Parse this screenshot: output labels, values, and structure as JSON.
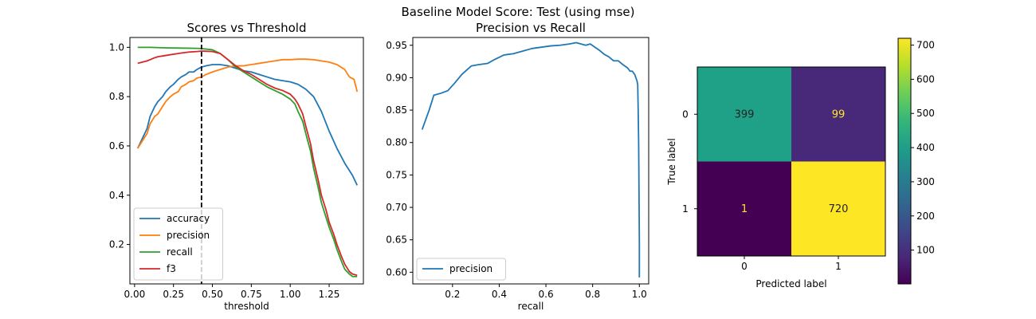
{
  "suptitle": "Baseline Model Score: Test (using mse)",
  "chart_data": [
    {
      "type": "line",
      "title": "Scores vs Threshold",
      "xlabel": "threshold",
      "ylabel": "",
      "xlim": [
        -0.03,
        1.47
      ],
      "ylim": [
        0.04,
        1.04
      ],
      "xticks": [
        0.0,
        0.25,
        0.5,
        0.75,
        1.0,
        1.25
      ],
      "xtick_labels": [
        "0.00",
        "0.25",
        "0.50",
        "0.75",
        "1.00",
        "1.25"
      ],
      "yticks": [
        0.2,
        0.4,
        0.6,
        0.8,
        1.0
      ],
      "ytick_labels": [
        "0.2",
        "0.4",
        "0.6",
        "0.8",
        "1.0"
      ],
      "threshold_line": {
        "x": 0.43,
        "style": "dashed",
        "color": "#000000"
      },
      "legend": {
        "position": "lower-left"
      },
      "series": [
        {
          "name": "accuracy",
          "color": "#1f77b4",
          "x": [
            0.02,
            0.05,
            0.08,
            0.1,
            0.13,
            0.15,
            0.18,
            0.2,
            0.23,
            0.25,
            0.28,
            0.3,
            0.33,
            0.35,
            0.38,
            0.4,
            0.43,
            0.46,
            0.5,
            0.55,
            0.6,
            0.65,
            0.7,
            0.75,
            0.8,
            0.85,
            0.9,
            0.95,
            1.0,
            1.05,
            1.1,
            1.15,
            1.2,
            1.25,
            1.3,
            1.35,
            1.4,
            1.43
          ],
          "y": [
            0.59,
            0.63,
            0.67,
            0.72,
            0.76,
            0.78,
            0.8,
            0.82,
            0.84,
            0.85,
            0.87,
            0.88,
            0.89,
            0.9,
            0.9,
            0.91,
            0.92,
            0.925,
            0.93,
            0.93,
            0.925,
            0.915,
            0.905,
            0.9,
            0.89,
            0.88,
            0.87,
            0.865,
            0.86,
            0.85,
            0.83,
            0.8,
            0.74,
            0.66,
            0.59,
            0.53,
            0.48,
            0.44
          ]
        },
        {
          "name": "precision",
          "color": "#ff7f0e",
          "x": [
            0.02,
            0.05,
            0.08,
            0.1,
            0.13,
            0.15,
            0.18,
            0.2,
            0.23,
            0.25,
            0.28,
            0.3,
            0.33,
            0.35,
            0.38,
            0.4,
            0.43,
            0.46,
            0.5,
            0.55,
            0.6,
            0.65,
            0.7,
            0.75,
            0.8,
            0.85,
            0.9,
            0.95,
            1.0,
            1.05,
            1.1,
            1.15,
            1.2,
            1.25,
            1.3,
            1.35,
            1.38,
            1.41,
            1.43
          ],
          "y": [
            0.59,
            0.62,
            0.65,
            0.69,
            0.72,
            0.73,
            0.76,
            0.78,
            0.8,
            0.81,
            0.82,
            0.84,
            0.85,
            0.86,
            0.865,
            0.875,
            0.88,
            0.89,
            0.9,
            0.91,
            0.92,
            0.925,
            0.925,
            0.93,
            0.935,
            0.94,
            0.945,
            0.95,
            0.95,
            0.952,
            0.952,
            0.95,
            0.945,
            0.94,
            0.93,
            0.91,
            0.88,
            0.87,
            0.82
          ]
        },
        {
          "name": "recall",
          "color": "#2ca02c",
          "x": [
            0.02,
            0.1,
            0.2,
            0.3,
            0.4,
            0.43,
            0.5,
            0.55,
            0.6,
            0.65,
            0.7,
            0.75,
            0.8,
            0.85,
            0.9,
            0.95,
            1.0,
            1.03,
            1.05,
            1.08,
            1.1,
            1.13,
            1.15,
            1.18,
            1.2,
            1.23,
            1.25,
            1.28,
            1.3,
            1.33,
            1.35,
            1.38,
            1.4,
            1.43
          ],
          "y": [
            1.0,
            1.0,
            0.998,
            0.997,
            0.996,
            0.995,
            0.99,
            0.975,
            0.95,
            0.92,
            0.9,
            0.88,
            0.86,
            0.84,
            0.825,
            0.81,
            0.79,
            0.77,
            0.74,
            0.7,
            0.65,
            0.58,
            0.51,
            0.43,
            0.37,
            0.31,
            0.27,
            0.22,
            0.18,
            0.13,
            0.1,
            0.08,
            0.07,
            0.07
          ]
        },
        {
          "name": "f3",
          "color": "#d62728",
          "x": [
            0.02,
            0.05,
            0.08,
            0.1,
            0.13,
            0.15,
            0.2,
            0.25,
            0.3,
            0.35,
            0.4,
            0.43,
            0.5,
            0.55,
            0.6,
            0.65,
            0.7,
            0.75,
            0.8,
            0.85,
            0.9,
            0.95,
            1.0,
            1.03,
            1.05,
            1.08,
            1.1,
            1.13,
            1.15,
            1.18,
            1.2,
            1.23,
            1.25,
            1.28,
            1.3,
            1.33,
            1.35,
            1.38,
            1.4,
            1.43
          ],
          "y": [
            0.935,
            0.94,
            0.945,
            0.95,
            0.958,
            0.962,
            0.967,
            0.972,
            0.977,
            0.981,
            0.983,
            0.985,
            0.983,
            0.975,
            0.95,
            0.925,
            0.905,
            0.89,
            0.87,
            0.85,
            0.835,
            0.825,
            0.81,
            0.79,
            0.77,
            0.73,
            0.68,
            0.61,
            0.54,
            0.46,
            0.4,
            0.34,
            0.29,
            0.24,
            0.2,
            0.15,
            0.12,
            0.09,
            0.08,
            0.075
          ]
        }
      ]
    },
    {
      "type": "line",
      "title": "Precision vs Recall",
      "xlabel": "recall",
      "ylabel": "",
      "xlim": [
        0.03,
        1.04
      ],
      "ylim": [
        0.582,
        0.962
      ],
      "xticks": [
        0.2,
        0.4,
        0.6,
        0.8,
        1.0
      ],
      "xtick_labels": [
        "0.2",
        "0.4",
        "0.6",
        "0.8",
        "1.0"
      ],
      "yticks": [
        0.6,
        0.65,
        0.7,
        0.75,
        0.8,
        0.85,
        0.9,
        0.95
      ],
      "ytick_labels": [
        "0.60",
        "0.65",
        "0.70",
        "0.75",
        "0.80",
        "0.85",
        "0.90",
        "0.95"
      ],
      "legend": {
        "position": "lower-left"
      },
      "series": [
        {
          "name": "precision",
          "color": "#1f77b4",
          "x": [
            0.07,
            0.1,
            0.12,
            0.15,
            0.18,
            0.21,
            0.24,
            0.28,
            0.31,
            0.35,
            0.38,
            0.42,
            0.46,
            0.5,
            0.54,
            0.58,
            0.62,
            0.66,
            0.7,
            0.73,
            0.75,
            0.77,
            0.79,
            0.81,
            0.83,
            0.85,
            0.87,
            0.89,
            0.91,
            0.93,
            0.95,
            0.96,
            0.97,
            0.98,
            0.985,
            0.99,
            0.993,
            0.995,
            0.997,
            0.998,
            0.999,
            1.0,
            1.0,
            1.0
          ],
          "y": [
            0.82,
            0.85,
            0.873,
            0.876,
            0.88,
            0.892,
            0.905,
            0.918,
            0.92,
            0.922,
            0.928,
            0.935,
            0.937,
            0.941,
            0.945,
            0.947,
            0.949,
            0.95,
            0.952,
            0.954,
            0.952,
            0.95,
            0.952,
            0.947,
            0.942,
            0.936,
            0.932,
            0.926,
            0.926,
            0.92,
            0.915,
            0.91,
            0.91,
            0.905,
            0.9,
            0.895,
            0.889,
            0.85,
            0.8,
            0.75,
            0.7,
            0.65,
            0.6,
            0.592
          ]
        }
      ]
    },
    {
      "type": "heatmap",
      "title": "",
      "xlabel": "Predicted label",
      "ylabel": "True label",
      "x_categories": [
        "0",
        "1"
      ],
      "y_categories": [
        "0",
        "1"
      ],
      "values": [
        [
          399,
          99
        ],
        [
          1,
          720
        ]
      ],
      "colorscale": "viridis",
      "colorbar": {
        "min": 1,
        "max": 720,
        "ticks": [
          100,
          200,
          300,
          400,
          500,
          600,
          700
        ],
        "tick_labels": [
          "100",
          "200",
          "300",
          "400",
          "500",
          "600",
          "700"
        ]
      },
      "cell_colors": [
        [
          "#1fa187",
          "#482879"
        ],
        [
          "#440154",
          "#fde725"
        ]
      ],
      "text_colors": [
        [
          "#222222",
          "#fde725"
        ],
        [
          "#fde725",
          "#222222"
        ]
      ]
    }
  ]
}
